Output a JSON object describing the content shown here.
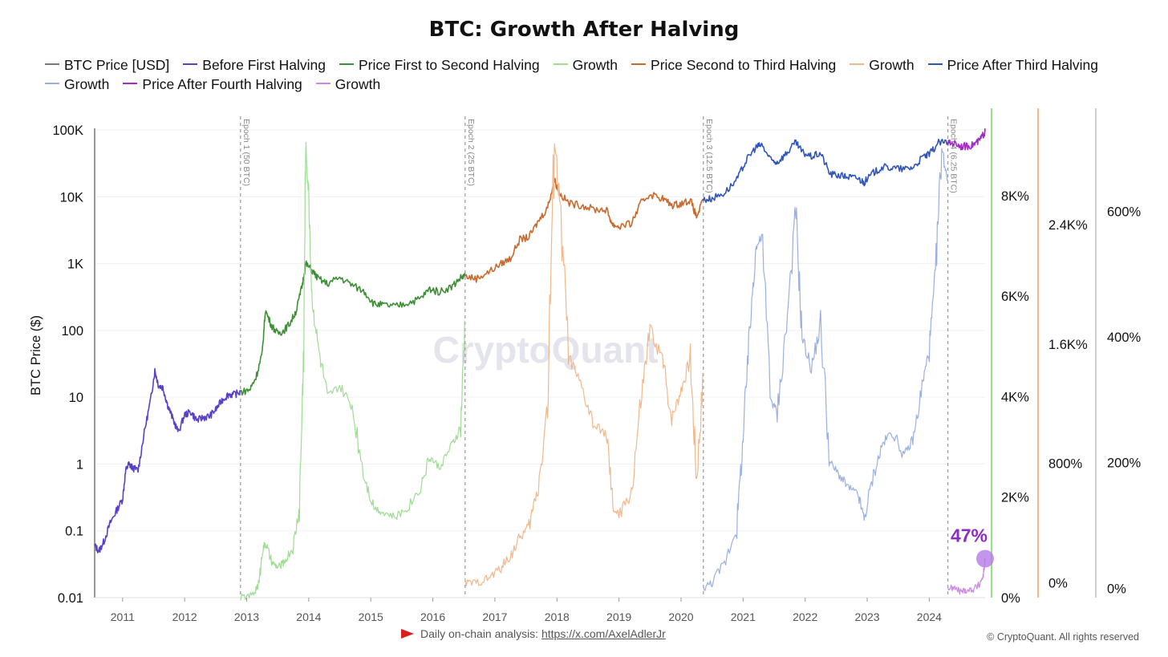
{
  "title": "BTC: Growth After Halving",
  "legend": [
    {
      "label": "BTC Price [USD]",
      "color": "#777777"
    },
    {
      "label": "Before First Halving",
      "color": "#5a40c8"
    },
    {
      "label": "Price First to Second Halving",
      "color": "#3d8f35"
    },
    {
      "label": "Growth",
      "color": "#9fdc94"
    },
    {
      "label": "Price Second to Third Halving",
      "color": "#c86a2e"
    },
    {
      "label": "Growth",
      "color": "#f0b88c"
    },
    {
      "label": "Price After Third Halving",
      "color": "#2f55b8"
    },
    {
      "label": "Growth",
      "color": "#9ab0e4"
    },
    {
      "label": "Price After Fourth Halving",
      "color": "#a42ac8"
    },
    {
      "label": "Growth",
      "color": "#cc88e4"
    }
  ],
  "footer": {
    "text": "Daily on-chain analysis:",
    "link": "https://x.com/AxelAdlerJr"
  },
  "copyright": "© CryptoQuant. All rights reserved",
  "watermark": "CryptoQuant",
  "callout": "47%",
  "chart_data": {
    "type": "line",
    "title": "BTC: Growth After Halving",
    "ylabel": "BTC Price ($)",
    "y_scale": "log",
    "ylim": [
      0.01,
      100000
    ],
    "xlim": [
      2010.55,
      2024.9
    ],
    "y_ticks": [
      "0.01",
      "0.1",
      "1",
      "10",
      "100",
      "1K",
      "10K",
      "100K"
    ],
    "x_ticks": [
      "2011",
      "2012",
      "2013",
      "2014",
      "2015",
      "2016",
      "2017",
      "2018",
      "2019",
      "2020",
      "2021",
      "2022",
      "2023",
      "2024"
    ],
    "growth_axes": [
      {
        "color": "#9fdc94",
        "ticks": [
          "0%",
          "2K%",
          "4K%",
          "6K%",
          "8K%"
        ],
        "ylim": [
          0,
          9500
        ]
      },
      {
        "color": "#f0b88c",
        "ticks": [
          "0%",
          "800%",
          "1.6K%",
          "2.4K%"
        ],
        "ylim": [
          -100,
          3100
        ]
      },
      {
        "color": "#cfcfcf",
        "ticks": [
          "0%",
          "200%",
          "400%",
          "600%"
        ],
        "ylim": [
          -15,
          745
        ]
      }
    ],
    "halvings": [
      {
        "label": "Epoch 1 (50 BTC)",
        "x": 2012.9
      },
      {
        "label": "Epoch 2 (25 BTC)",
        "x": 2016.52
      },
      {
        "label": "Epoch 3 (12.5 BTC)",
        "x": 2020.36
      },
      {
        "label": "Epoch 4 (6.25 BTC)",
        "x": 2024.3
      }
    ],
    "series": [
      {
        "name": "Before First Halving",
        "color": "#5a40c8",
        "axis": "price",
        "x": [
          2010.55,
          2010.62,
          2010.7,
          2010.8,
          2010.9,
          2011.0,
          2011.05,
          2011.1,
          2011.15,
          2011.25,
          2011.35,
          2011.45,
          2011.52,
          2011.58,
          2011.65,
          2011.72,
          2011.8,
          2011.9,
          2012.0,
          2012.1,
          2012.2,
          2012.3,
          2012.4,
          2012.5,
          2012.6,
          2012.7,
          2012.8,
          2012.9
        ],
        "y": [
          0.06,
          0.05,
          0.07,
          0.13,
          0.2,
          0.3,
          0.8,
          1.0,
          0.9,
          0.8,
          3.0,
          9.0,
          25,
          15,
          14,
          8,
          5,
          3.0,
          5.5,
          6.0,
          4.5,
          5.0,
          5.2,
          6.5,
          9.0,
          11,
          11,
          12
        ]
      },
      {
        "name": "Price First to Second Halving",
        "color": "#3d8f35",
        "axis": "price",
        "x": [
          2012.9,
          2013.05,
          2013.15,
          2013.25,
          2013.3,
          2013.4,
          2013.5,
          2013.6,
          2013.7,
          2013.8,
          2013.9,
          2013.95,
          2014.05,
          2014.15,
          2014.3,
          2014.5,
          2014.7,
          2014.9,
          2015.05,
          2015.2,
          2015.4,
          2015.6,
          2015.8,
          2015.95,
          2016.1,
          2016.3,
          2016.45,
          2016.52
        ],
        "y": [
          12,
          13,
          20,
          45,
          200,
          120,
          90,
          100,
          130,
          200,
          500,
          1000,
          800,
          600,
          500,
          620,
          480,
          380,
          250,
          240,
          230,
          260,
          300,
          420,
          380,
          450,
          620,
          650
        ]
      },
      {
        "name": "Price Second to Third Halving",
        "color": "#c86a2e",
        "axis": "price",
        "x": [
          2016.52,
          2016.7,
          2016.9,
          2017.1,
          2017.25,
          2017.4,
          2017.55,
          2017.7,
          2017.85,
          2017.96,
          2018.05,
          2018.2,
          2018.4,
          2018.6,
          2018.8,
          2018.9,
          2019.0,
          2019.2,
          2019.35,
          2019.5,
          2019.7,
          2019.85,
          2020.0,
          2020.15,
          2020.25,
          2020.36
        ],
        "y": [
          650,
          600,
          750,
          1000,
          1200,
          2300,
          2500,
          4300,
          7000,
          18000,
          11000,
          8000,
          7500,
          6500,
          6400,
          3800,
          3600,
          4000,
          8000,
          11000,
          9500,
          7500,
          8000,
          9000,
          5000,
          9000
        ]
      },
      {
        "name": "Price After Third Halving",
        "color": "#2f55b8",
        "axis": "price",
        "x": [
          2020.36,
          2020.5,
          2020.7,
          2020.9,
          2021.05,
          2021.2,
          2021.3,
          2021.45,
          2021.55,
          2021.7,
          2021.85,
          2021.95,
          2022.1,
          2022.25,
          2022.4,
          2022.55,
          2022.7,
          2022.85,
          2022.95,
          2023.1,
          2023.25,
          2023.4,
          2023.6,
          2023.75,
          2023.9,
          2024.0,
          2024.15,
          2024.3
        ],
        "y": [
          9000,
          9500,
          11500,
          18000,
          35000,
          55000,
          60000,
          35000,
          33000,
          45000,
          65000,
          47000,
          40000,
          45000,
          22000,
          21000,
          20000,
          19000,
          16500,
          23000,
          28000,
          27000,
          26000,
          28000,
          40000,
          43000,
          65000,
          65000
        ]
      },
      {
        "name": "Price After Fourth Halving",
        "color": "#a42ac8",
        "axis": "price",
        "x": [
          2024.3,
          2024.4,
          2024.5,
          2024.6,
          2024.7,
          2024.8,
          2024.87,
          2024.9
        ],
        "y": [
          63000,
          64000,
          58000,
          57000,
          60000,
          68000,
          85000,
          95000
        ]
      },
      {
        "name": "Growth",
        "color": "#9fdc94",
        "axis": "g0",
        "x": [
          2012.9,
          2013.1,
          2013.2,
          2013.25,
          2013.3,
          2013.4,
          2013.5,
          2013.6,
          2013.75,
          2013.85,
          2013.92,
          2013.95,
          2014.0,
          2014.05,
          2014.15,
          2014.3,
          2014.5,
          2014.7,
          2014.9,
          2015.05,
          2015.2,
          2015.4,
          2015.6,
          2015.8,
          2015.95,
          2016.1,
          2016.3,
          2016.45,
          2016.52
        ],
        "y": [
          0,
          50,
          300,
          900,
          1100,
          700,
          600,
          700,
          1000,
          1800,
          5000,
          9000,
          8000,
          6000,
          5000,
          4000,
          4200,
          3800,
          2400,
          1800,
          1700,
          1600,
          1800,
          2200,
          2800,
          2600,
          3000,
          3400,
          5500
        ]
      },
      {
        "name": "Growth",
        "color": "#f0b88c",
        "axis": "g1",
        "x": [
          2016.52,
          2016.7,
          2016.9,
          2017.1,
          2017.25,
          2017.4,
          2017.55,
          2017.7,
          2017.85,
          2017.96,
          2018.05,
          2018.2,
          2018.4,
          2018.6,
          2018.8,
          2018.9,
          2019.0,
          2019.2,
          2019.35,
          2019.5,
          2019.7,
          2019.85,
          2020.0,
          2020.15,
          2020.25,
          2020.36
        ],
        "y": [
          0,
          0,
          30,
          100,
          180,
          300,
          380,
          650,
          1200,
          3000,
          2500,
          1500,
          1300,
          1050,
          1000,
          500,
          450,
          600,
          1200,
          1700,
          1500,
          1100,
          1300,
          1500,
          700,
          1400
        ]
      },
      {
        "name": "Growth",
        "color": "#9ab0e4",
        "axis": "g2",
        "x": [
          2020.36,
          2020.5,
          2020.7,
          2020.9,
          2021.0,
          2021.1,
          2021.2,
          2021.3,
          2021.45,
          2021.55,
          2021.7,
          2021.85,
          2021.95,
          2022.1,
          2022.25,
          2022.4,
          2022.55,
          2022.7,
          2022.85,
          2022.95,
          2023.1,
          2023.25,
          2023.4,
          2023.6,
          2023.75,
          2023.9,
          2024.0,
          2024.1,
          2024.2,
          2024.3
        ],
        "y": [
          0,
          10,
          40,
          100,
          240,
          400,
          540,
          560,
          300,
          280,
          420,
          600,
          400,
          350,
          420,
          200,
          180,
          160,
          150,
          110,
          180,
          230,
          250,
          210,
          240,
          330,
          380,
          500,
          700,
          650
        ]
      },
      {
        "name": "Growth",
        "color": "#cc88e4",
        "axis": "g2",
        "x": [
          2024.3,
          2024.4,
          2024.5,
          2024.6,
          2024.7,
          2024.8,
          2024.87,
          2024.9
        ],
        "y": [
          0,
          0,
          -5,
          -3,
          -2,
          5,
          20,
          47
        ]
      }
    ]
  }
}
